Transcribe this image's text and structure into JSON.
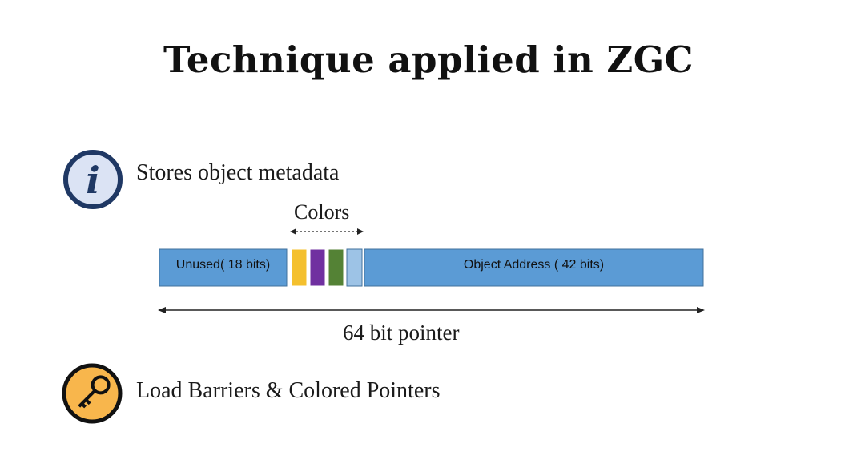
{
  "slide": {
    "title": "Technique applied in ZGC"
  },
  "bullets": [
    {
      "icon": "info-icon",
      "text": "Stores object metadata"
    },
    {
      "icon": "key-icon",
      "text": "Load Barriers & Colored Pointers"
    }
  ],
  "diagram": {
    "colors_label": "Colors",
    "segments": {
      "unused": "Unused( 18 bits)",
      "address": "Object Address ( 42 bits)"
    },
    "color_bits": [
      {
        "name": "yellow",
        "color": "#f4c02e"
      },
      {
        "name": "purple",
        "color": "#7030a0"
      },
      {
        "name": "green",
        "color": "#548235"
      },
      {
        "name": "light-blue",
        "color": "#9dc3e6"
      }
    ],
    "pointer_label": "64 bit pointer"
  },
  "colors": {
    "segment_blue": "#5b9bd5",
    "info_icon_fill": "#dbe3f4",
    "info_icon_border": "#1f3864",
    "key_icon_fill": "#f8b64c"
  }
}
